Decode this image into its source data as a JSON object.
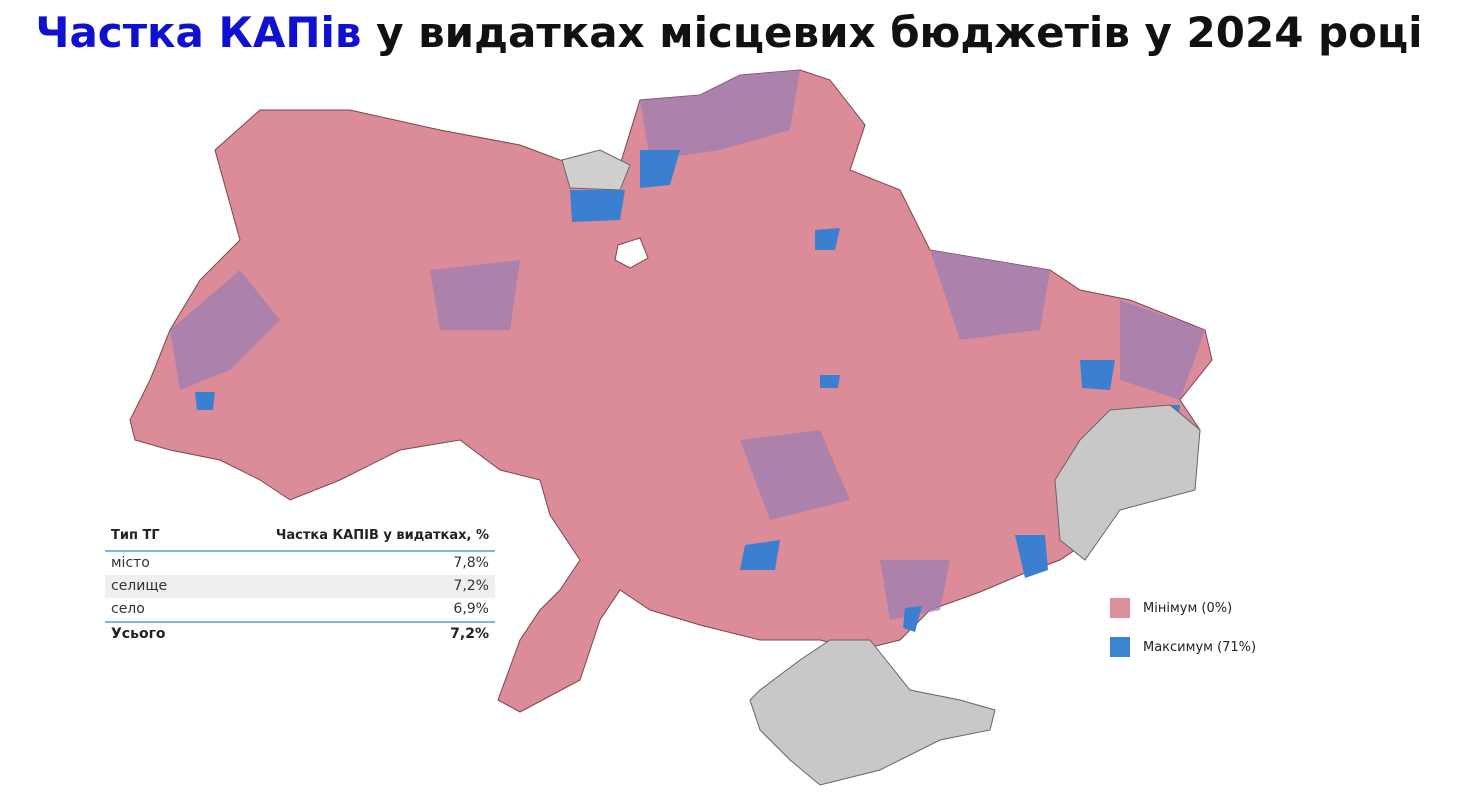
{
  "title": {
    "highlight": "Частка КАПів",
    "rest": "у видатках місцевих бюджетів у 2024 році"
  },
  "table": {
    "header": [
      "Тип ТГ",
      "Частка КАПІВ у видатках, %"
    ],
    "rows": [
      [
        "місто",
        "7,8%"
      ],
      [
        "селище",
        "7,2%"
      ],
      [
        "село",
        "6,9%"
      ]
    ],
    "total": [
      "Усього",
      "7,2%"
    ]
  },
  "legend": [
    {
      "label": "Мінімум (0%)",
      "color": "#df8e9b"
    },
    {
      "label": "Максимум (71%)",
      "color": "#3b86cf"
    }
  ]
}
